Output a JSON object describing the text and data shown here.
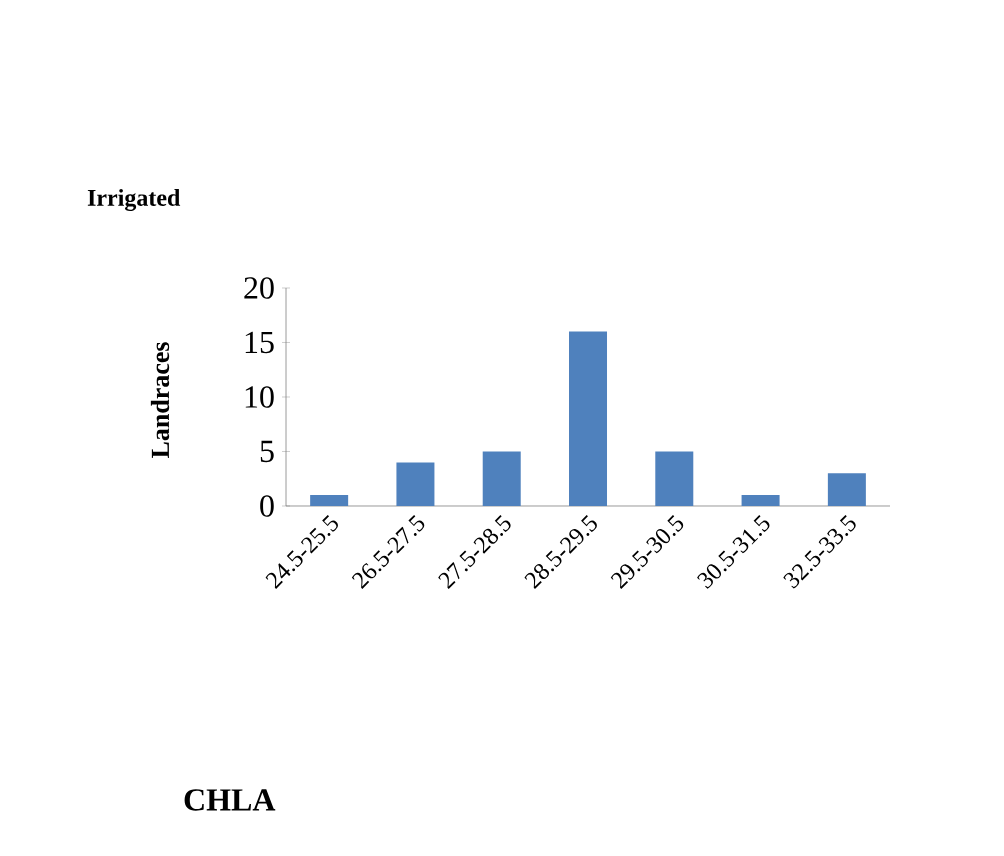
{
  "chart_data": {
    "type": "bar",
    "title": "Irrigated",
    "ylabel": "Landraces",
    "categories": [
      "24.5-25.5",
      "26.5-27.5",
      "27.5-28.5",
      "28.5-29.5",
      "29.5-30.5",
      "30.5-31.5",
      "32.5-33.5"
    ],
    "values": [
      1,
      4,
      5,
      16,
      5,
      1,
      3
    ],
    "color": "#4f81bd",
    "ylim": [
      0,
      20
    ],
    "yticks": [
      0,
      5,
      10,
      15,
      20
    ],
    "annotations": [
      "CHLA"
    ]
  }
}
